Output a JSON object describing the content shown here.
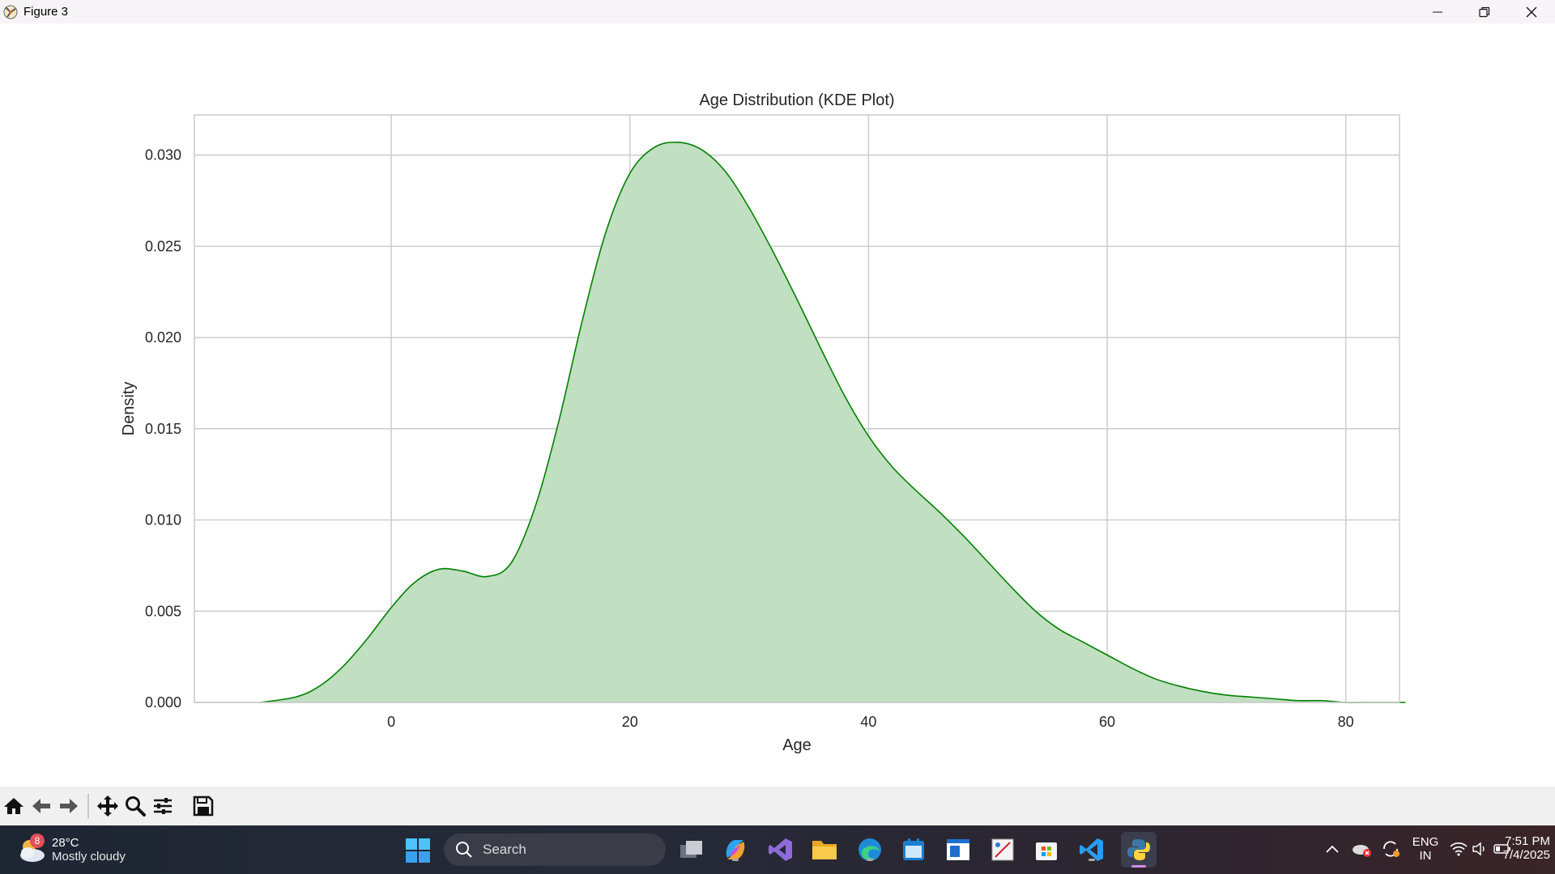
{
  "window": {
    "title": "Figure 3"
  },
  "chart_data": {
    "type": "area",
    "title": "Age Distribution (KDE Plot)",
    "xlabel": "Age",
    "ylabel": "Density",
    "xlim": [
      -16.5,
      84.5
    ],
    "ylim": [
      0.0,
      0.0322
    ],
    "xticks": [
      0,
      20,
      40,
      60,
      80
    ],
    "xtick_labels": [
      "0",
      "20",
      "40",
      "60",
      "80"
    ],
    "yticks": [
      0.0,
      0.005,
      0.01,
      0.015,
      0.02,
      0.025,
      0.03
    ],
    "ytick_labels": [
      "0.000",
      "0.005",
      "0.010",
      "0.015",
      "0.020",
      "0.025",
      "0.030"
    ],
    "grid": true,
    "line_color": "#008000",
    "fill_color": "#c1dfc1",
    "x": [
      -11,
      -8,
      -6,
      -4,
      -2,
      0,
      2,
      4,
      6,
      8,
      10,
      12,
      14,
      16,
      18,
      20,
      22,
      24,
      26,
      28,
      30,
      32,
      34,
      36,
      38,
      40,
      42,
      44,
      46,
      48,
      50,
      52,
      54,
      56,
      58,
      60,
      62,
      64,
      66,
      68,
      70,
      72,
      74,
      76,
      78,
      80,
      82,
      85
    ],
    "y": [
      0.0,
      0.0003,
      0.0009,
      0.002,
      0.0035,
      0.0052,
      0.0066,
      0.0073,
      0.0072,
      0.0069,
      0.0076,
      0.0106,
      0.0153,
      0.0209,
      0.0258,
      0.029,
      0.0304,
      0.0307,
      0.0303,
      0.0291,
      0.0271,
      0.0247,
      0.0221,
      0.0194,
      0.0168,
      0.0146,
      0.0129,
      0.0116,
      0.0104,
      0.0091,
      0.0077,
      0.0063,
      0.005,
      0.004,
      0.0033,
      0.0026,
      0.0019,
      0.0013,
      0.0009,
      0.0006,
      0.0004,
      0.0003,
      0.0002,
      0.0001,
      0.0001,
      0.0,
      0.0,
      0.0
    ]
  },
  "toolbar": {
    "icons": [
      "home-icon",
      "back-icon",
      "forward-icon",
      "pan-icon",
      "zoom-icon",
      "configure-subplots-icon",
      "save-icon"
    ]
  },
  "taskbar": {
    "weather": {
      "temp": "28°C",
      "condition": "Mostly cloudy",
      "badge": "8"
    },
    "search_label": "Search",
    "language": {
      "line1": "ENG",
      "line2": "IN"
    },
    "clock": {
      "time": "7:51 PM",
      "date": "7/4/2025"
    }
  }
}
